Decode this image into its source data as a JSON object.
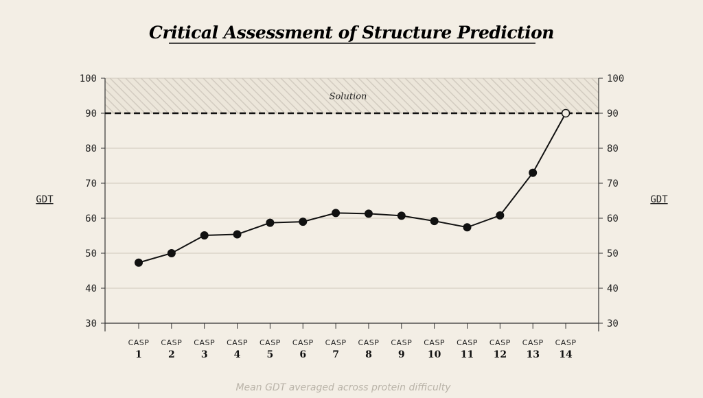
{
  "chart_data": {
    "type": "line",
    "title": "Critical Assessment of Structure Prediction",
    "ylabel": "GDT",
    "ylabel_right": "GDT",
    "ylim": [
      30,
      100
    ],
    "yticks": [
      "100",
      "90",
      "80",
      "70",
      "60",
      "50",
      "40",
      "30"
    ],
    "category_prefix": "CASP",
    "categories": [
      "1",
      "2",
      "3",
      "4",
      "5",
      "6",
      "7",
      "8",
      "9",
      "10",
      "11",
      "12",
      "13",
      "14"
    ],
    "values": [
      47.3,
      50.0,
      55.1,
      55.4,
      58.7,
      59.0,
      61.5,
      61.3,
      60.7,
      59.2,
      57.4,
      60.8,
      73.0,
      90.0
    ],
    "open_marker_last": true,
    "threshold": {
      "value": 90,
      "label": "Solution",
      "band_top": 100
    },
    "footnote": "Mean GDT averaged across protein difficulty",
    "grid": true
  },
  "colors": {
    "background": "#f3eee5",
    "line": "#111111",
    "grid": "#cfc8bc",
    "band_hatch": "#d2cbc0"
  }
}
